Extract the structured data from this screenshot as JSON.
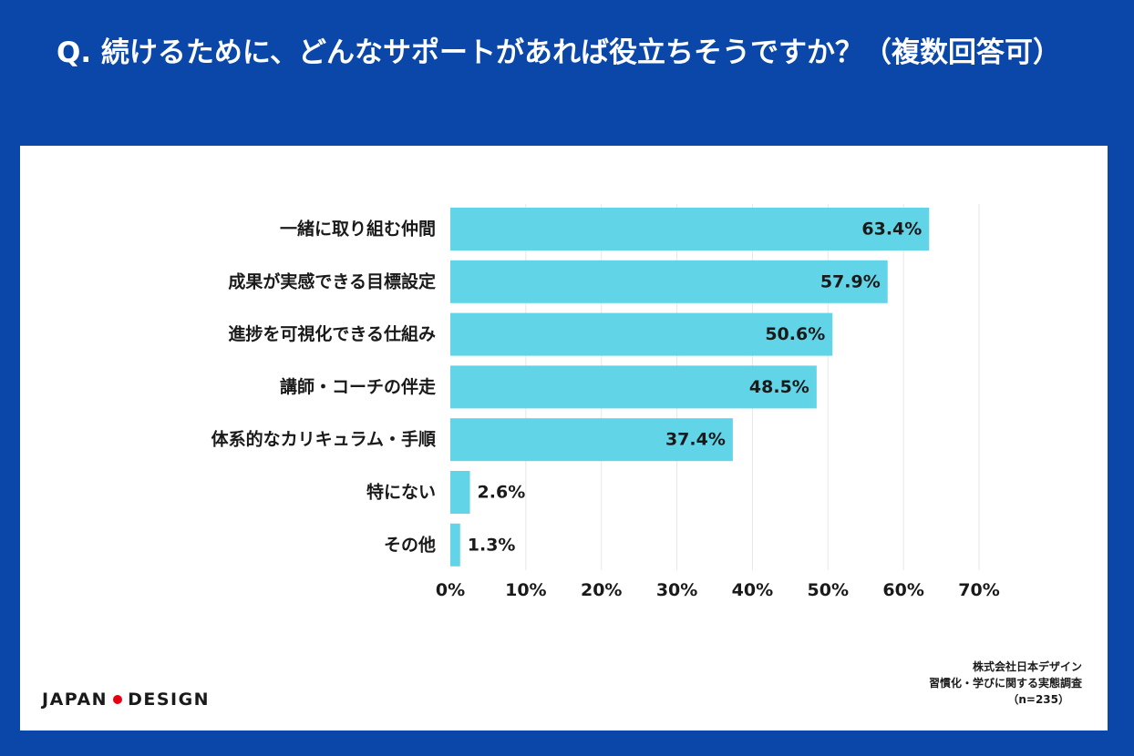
{
  "header": {
    "title": "Q. 続けるために、どんなサポートがあれば役立ちそうですか？（複数回答可）"
  },
  "brand": {
    "logo_left": "JAPAN",
    "logo_right": "DESIGN",
    "logo_dot_color": "#e60012"
  },
  "source": {
    "line1": "株式会社日本デザイン",
    "line2": "習慣化・学びに関する実態調査",
    "line3": "（n=235）"
  },
  "colors": {
    "background": "#0a47a8",
    "bar": "#62d4e8",
    "grid": "#e6e6e6"
  },
  "chart_data": {
    "type": "bar",
    "orientation": "horizontal",
    "categories": [
      "一緒に取り組む仲間",
      "成果が実感できる目標設定",
      "進捗を可視化できる仕組み",
      "講師・コーチの伴走",
      "体系的なカリキュラム・手順",
      "特にない",
      "その他"
    ],
    "values": [
      63.4,
      57.9,
      50.6,
      48.5,
      37.4,
      2.6,
      1.3
    ],
    "data_labels": [
      "63.4%",
      "57.9%",
      "50.6%",
      "48.5%",
      "37.4%",
      "2.6%",
      "1.3%"
    ],
    "xlim": [
      0,
      70
    ],
    "x_ticks": [
      0,
      10,
      20,
      30,
      40,
      50,
      60,
      70
    ],
    "x_tick_labels": [
      "0%",
      "10%",
      "20%",
      "30%",
      "40%",
      "50%",
      "60%",
      "70%"
    ],
    "grid": true
  }
}
